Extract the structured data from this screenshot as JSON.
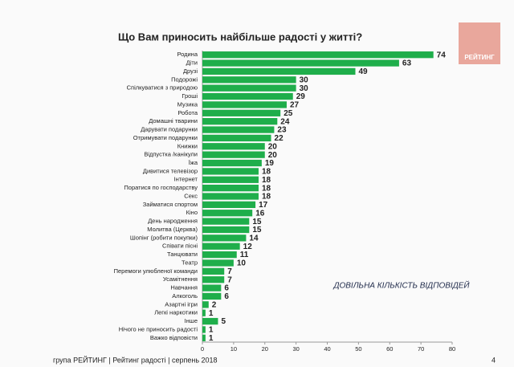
{
  "chart_data": {
    "type": "hbar",
    "title": "Що Вам приносить найбільше радості у  житті?",
    "annotation": "ДОВІЛЬНА КІЛЬКІСТЬ ВІДПОВІДЕЙ",
    "categories": [
      "Родина",
      "Діти",
      "Друзі",
      "Подорожі",
      "Спілкуватися з природою",
      "Гроші",
      "Музика",
      "Робота",
      "Домашні тварини",
      "Дарувати подарунки",
      "Отримувати подарунки",
      "Книжки",
      "Відпустка /канікули",
      "Їжа",
      "Дивитися телевізор",
      "Інтернет",
      "Поратися по господарству",
      "Секс",
      "Займатися спортом",
      "Кіно",
      "День народження",
      "Молитва (Церква)",
      "Шопінг (робити покупки)",
      "Співати пісні",
      "Танцювати",
      "Театр",
      "Перемоги улюбленої команди",
      "Усамітнення",
      "Навчання",
      "Алкоголь",
      "Азартні ігри",
      "Легкі наркотики",
      "Інше",
      "Нічого не приносить радості",
      "Важко відповісти"
    ],
    "values": [
      74,
      63,
      49,
      30,
      30,
      29,
      27,
      25,
      24,
      23,
      22,
      20,
      20,
      19,
      18,
      18,
      18,
      18,
      17,
      16,
      15,
      15,
      14,
      12,
      11,
      10,
      7,
      7,
      6,
      6,
      2,
      1,
      5,
      1,
      1
    ],
    "color": "#1fae4b",
    "xlim": [
      0,
      80
    ],
    "xticks": [
      0,
      10,
      20,
      30,
      40,
      50,
      60,
      70,
      80
    ],
    "grid": false
  },
  "logo": "РЕЙТИНГ",
  "footer": "група РЕЙТИНГ  |  Рейтинг радості  |  серпень 2018",
  "page_number": "4"
}
